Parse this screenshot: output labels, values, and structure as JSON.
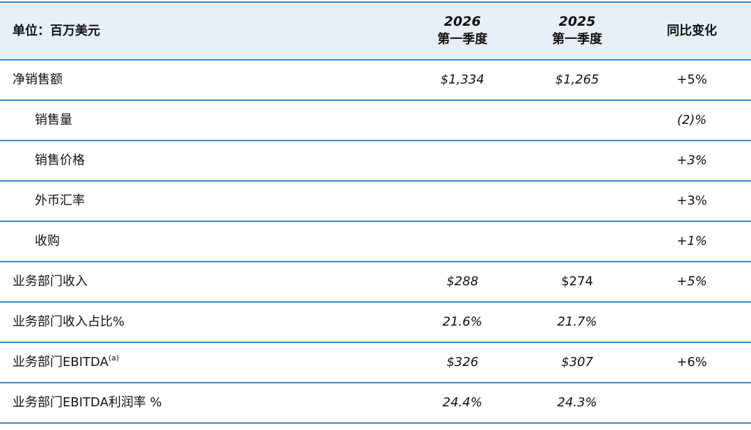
{
  "header": {
    "unit_label": "单位：百万美元",
    "col1_year": "2026",
    "col1_quarter": "第一季度",
    "col2_year": "2025",
    "col2_quarter": "第一季度",
    "col3_label": "同比变化"
  },
  "rows": [
    {
      "label": "净销售额",
      "v2026": "$1,334",
      "v2025": "$1,265",
      "yoy": "+5%"
    },
    {
      "label": "销售量",
      "v2026": "",
      "v2025": "",
      "yoy": "(2)%"
    },
    {
      "label": "销售价格",
      "v2026": "",
      "v2025": "",
      "yoy": "+3%"
    },
    {
      "label": "外币汇率",
      "v2026": "",
      "v2025": "",
      "yoy": "+3%"
    },
    {
      "label": "收购",
      "v2026": "",
      "v2025": "",
      "yoy": "+1%"
    },
    {
      "label": "业务部门收入",
      "v2026": "$288",
      "v2025": "$274",
      "yoy": "+5%"
    },
    {
      "label": "业务部门收入占比%",
      "v2026": "21.6%",
      "v2025": "21.7%",
      "yoy": ""
    },
    {
      "label": "业务部门EBITDA",
      "sup": "(a)",
      "v2026": "$326",
      "v2025": "$307",
      "yoy": "+6%"
    },
    {
      "label": "业务部门EBITDA利润率 %",
      "v2026": "24.4%",
      "v2025": "24.3%",
      "yoy": ""
    }
  ]
}
